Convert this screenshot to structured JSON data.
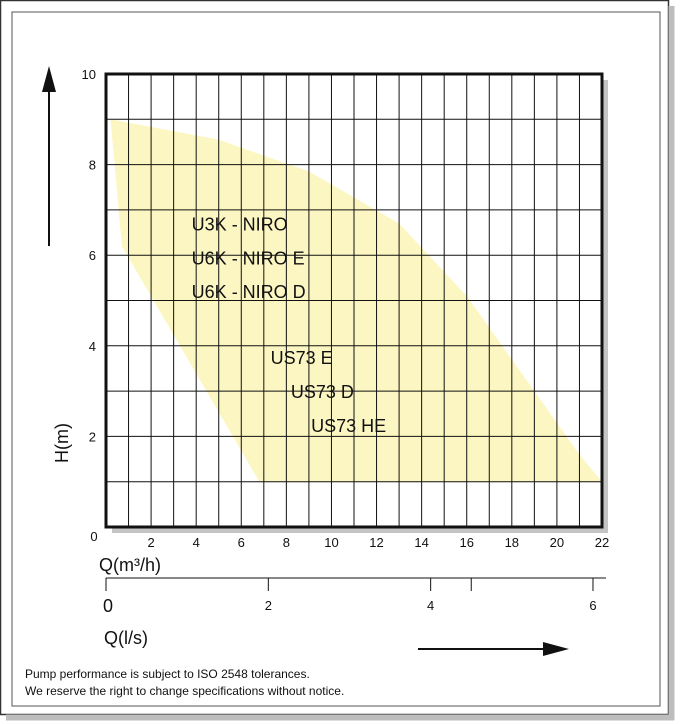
{
  "chart_data": {
    "type": "area",
    "title": "",
    "xlabel": "Q(m³/h)",
    "ylabel": "H(m)",
    "xlim": [
      0,
      22
    ],
    "ylim": [
      0,
      10
    ],
    "x_ticks": [
      2,
      4,
      6,
      8,
      10,
      12,
      14,
      16,
      18,
      20,
      22
    ],
    "y_ticks": [
      0,
      2,
      4,
      6,
      8,
      10
    ],
    "grid": true,
    "secondary_axis": {
      "label": "Q(l/s)",
      "ticks": [
        0,
        2,
        4,
        6
      ],
      "minor_tick": 4.5
    },
    "series": [
      {
        "region": [
          [
            0.2,
            9.0
          ],
          [
            5,
            8.55
          ],
          [
            9,
            7.85
          ],
          [
            13,
            6.7
          ],
          [
            16,
            5.1
          ],
          [
            19,
            3.0
          ],
          [
            21,
            1.6
          ],
          [
            22,
            1.0
          ],
          [
            6.8,
            1.0
          ],
          [
            0.7,
            6.2
          ]
        ],
        "color": "#fcf7c2"
      }
    ],
    "annotations": [
      {
        "text": "U3K - NIRO",
        "x": 3.8,
        "y": 6.55
      },
      {
        "text": "U6K - NIRO E",
        "x": 3.8,
        "y": 5.8
      },
      {
        "text": "U6K - NIRO D",
        "x": 3.8,
        "y": 5.05
      },
      {
        "text": "US73 E",
        "x": 7.3,
        "y": 3.6
      },
      {
        "text": "US73 D",
        "x": 8.2,
        "y": 2.85
      },
      {
        "text": "US73 HE",
        "x": 9.1,
        "y": 2.1
      }
    ],
    "axis_zero_label": "0",
    "secondary_zero_label": "0"
  },
  "footnotes": [
    "Pump performance is subject to ISO 2548 tolerances.",
    "We reserve the right to change specifications without notice."
  ]
}
